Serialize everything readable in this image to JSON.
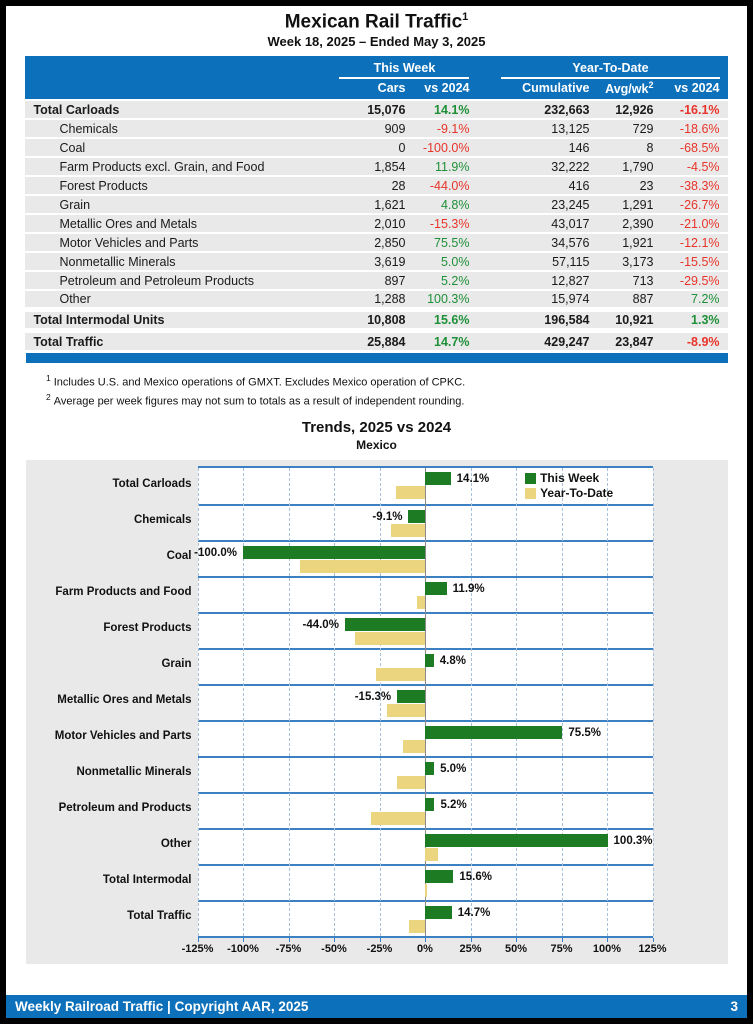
{
  "page": {
    "title": "Mexican Rail Traffic",
    "title_sup": "1",
    "subtitle": "Week 18, 2025 – Ended May 3, 2025"
  },
  "table": {
    "header": {
      "group_this_week": "This Week",
      "group_year_to_date": "Year-To-Date",
      "col_cars": "Cars",
      "col_vs_2024_tw": "vs 2024",
      "col_cumulative": "Cumulative",
      "col_avg_wk": "Avg/wk",
      "col_avg_wk_sup": "2",
      "col_vs_2024_ytd": "vs 2024"
    },
    "rows": [
      {
        "label": "Total Carloads",
        "total": true,
        "cars": "15,076",
        "tw_pct": "14.1%",
        "cumulative": "232,663",
        "avg_wk": "12,926",
        "ytd_pct": "-16.1%"
      },
      {
        "label": "Chemicals",
        "total": false,
        "cars": "909",
        "tw_pct": "-9.1%",
        "cumulative": "13,125",
        "avg_wk": "729",
        "ytd_pct": "-18.6%"
      },
      {
        "label": "Coal",
        "total": false,
        "cars": "0",
        "tw_pct": "-100.0%",
        "cumulative": "146",
        "avg_wk": "8",
        "ytd_pct": "-68.5%"
      },
      {
        "label": "Farm Products excl. Grain, and Food",
        "total": false,
        "cars": "1,854",
        "tw_pct": "11.9%",
        "cumulative": "32,222",
        "avg_wk": "1,790",
        "ytd_pct": "-4.5%"
      },
      {
        "label": "Forest Products",
        "total": false,
        "cars": "28",
        "tw_pct": "-44.0%",
        "cumulative": "416",
        "avg_wk": "23",
        "ytd_pct": "-38.3%"
      },
      {
        "label": "Grain",
        "total": false,
        "cars": "1,621",
        "tw_pct": "4.8%",
        "cumulative": "23,245",
        "avg_wk": "1,291",
        "ytd_pct": "-26.7%"
      },
      {
        "label": "Metallic Ores and Metals",
        "total": false,
        "cars": "2,010",
        "tw_pct": "-15.3%",
        "cumulative": "43,017",
        "avg_wk": "2,390",
        "ytd_pct": "-21.0%"
      },
      {
        "label": "Motor Vehicles and Parts",
        "total": false,
        "cars": "2,850",
        "tw_pct": "75.5%",
        "cumulative": "34,576",
        "avg_wk": "1,921",
        "ytd_pct": "-12.1%"
      },
      {
        "label": "Nonmetallic Minerals",
        "total": false,
        "cars": "3,619",
        "tw_pct": "5.0%",
        "cumulative": "57,115",
        "avg_wk": "3,173",
        "ytd_pct": "-15.5%"
      },
      {
        "label": "Petroleum and Petroleum Products",
        "total": false,
        "cars": "897",
        "tw_pct": "5.2%",
        "cumulative": "12,827",
        "avg_wk": "713",
        "ytd_pct": "-29.5%"
      },
      {
        "label": "Other",
        "total": false,
        "cars": "1,288",
        "tw_pct": "100.3%",
        "cumulative": "15,974",
        "avg_wk": "887",
        "ytd_pct": "7.2%"
      },
      {
        "label": "Total Intermodal Units",
        "total": true,
        "cars": "10,808",
        "tw_pct": "15.6%",
        "cumulative": "196,584",
        "avg_wk": "10,921",
        "ytd_pct": "1.3%"
      },
      {
        "label": "Total Traffic",
        "total": true,
        "cars": "25,884",
        "tw_pct": "14.7%",
        "cumulative": "429,247",
        "avg_wk": "23,847",
        "ytd_pct": "-8.9%"
      }
    ]
  },
  "footnotes": [
    {
      "sup": "1",
      "text": "Includes U.S. and Mexico operations of GMXT. Excludes Mexico operation of CPKC."
    },
    {
      "sup": "2",
      "text": "Average per week figures may not sum to totals as a result of independent rounding."
    }
  ],
  "chart_data": {
    "type": "bar",
    "orientation": "horizontal",
    "title": "Trends, 2025 vs 2024",
    "subtitle": "Mexico",
    "categories": [
      "Total Carloads",
      "Chemicals",
      "Coal",
      "Farm Products and Food",
      "Forest Products",
      "Grain",
      "Metallic Ores and Metals",
      "Motor Vehicles and Parts",
      "Nonmetallic Minerals",
      "Petroleum and Products",
      "Other",
      "Total Intermodal",
      "Total Traffic"
    ],
    "series": [
      {
        "name": "This Week",
        "color": "#1d7b24",
        "values": [
          14.1,
          -9.1,
          -100.0,
          11.9,
          -44.0,
          4.8,
          -15.3,
          75.5,
          5.0,
          5.2,
          100.3,
          15.6,
          14.7
        ]
      },
      {
        "name": "Year-To-Date",
        "color": "#ecd57f",
        "values": [
          -16.1,
          -18.6,
          -68.5,
          -4.5,
          -38.3,
          -26.7,
          -21.0,
          -12.1,
          -15.5,
          -29.5,
          7.2,
          1.3,
          -8.9
        ]
      }
    ],
    "bar_labels": [
      "14.1%",
      "-9.1%",
      "-100.0%",
      "11.9%",
      "-44.0%",
      "4.8%",
      "-15.3%",
      "75.5%",
      "5.0%",
      "5.2%",
      "100.3%",
      "15.6%",
      "14.7%"
    ],
    "bar_labels_series": "This Week",
    "xlim": [
      -125,
      125
    ],
    "x_ticks": [
      "-125%",
      "-100%",
      "-75%",
      "-50%",
      "-25%",
      "0%",
      "25%",
      "50%",
      "75%",
      "100%",
      "125%"
    ],
    "legend_position": "top-right-inside",
    "grid": "vertical-dashed"
  },
  "footer": {
    "left": "Weekly Railroad Traffic | Copyright AAR, 2025",
    "page_number": "3"
  }
}
